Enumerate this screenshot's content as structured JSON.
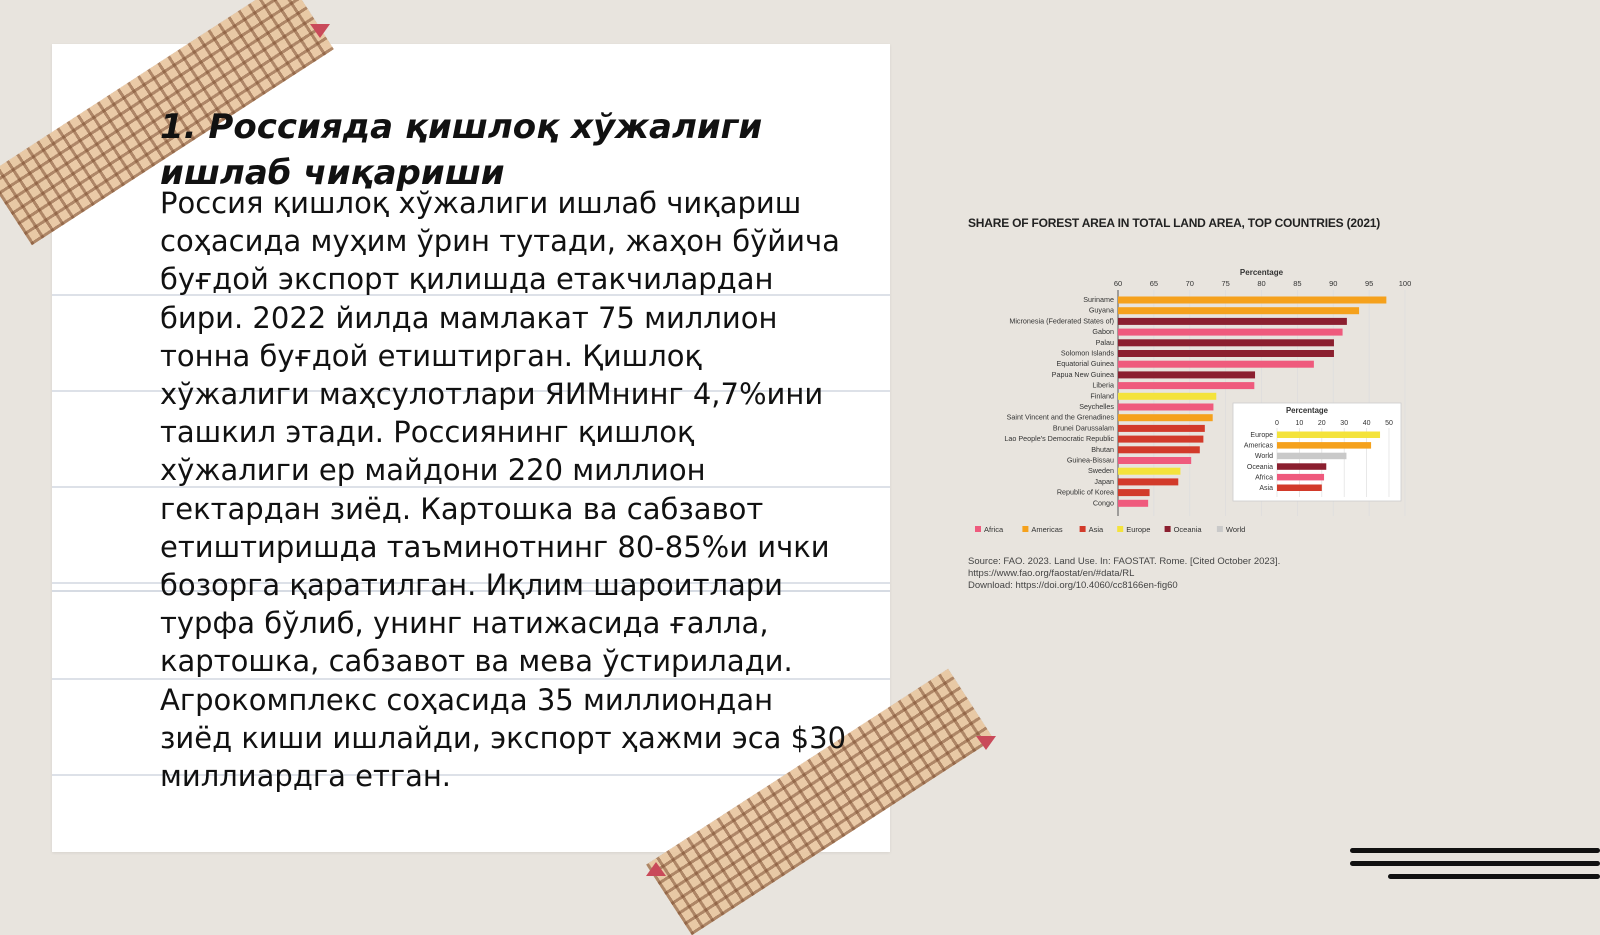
{
  "slide": {
    "title": "1. Россияда қишлоқ хўжалиги ишлаб чиқариши",
    "body": "Россия қишлоқ хўжалиги ишлаб чиқариш соҳасида муҳим ўрин тутади, жаҳон бўйича буғдой экспорт қилишда етакчилардан бири. 2022 йилда мамлакат 75 миллион тонна буғдой етиштирган. Қишлоқ хўжалиги маҳсулотлари ЯИМнинг 4,7%ини ташкил этади. Россиянинг қишлоқ хўжалиги ер майдони 220 миллион гектардан зиёд. Картошка ва сабзавот етиштиришда таъминотнинг 80-85%и ички бозорга қаратилган. Иқлим шароитлари турфа бўлиб, унинг натижасида ғалла, картошка, сабзавот ва мева ўстирилади. Агрокомплекс соҳасида 35 миллиондан зиёд киши ишлайди, экспорт ҳажми эса $30 миллиардга етган."
  },
  "chart_data": [
    {
      "type": "bar",
      "orientation": "horizontal",
      "title": "SHARE OF FOREST AREA IN TOTAL LAND AREA, TOP COUNTRIES (2021)",
      "xlabel": "Percentage",
      "xlim": [
        60,
        100
      ],
      "xticks": [
        60,
        65,
        70,
        75,
        80,
        85,
        90,
        95,
        100
      ],
      "categories": [
        "Suriname",
        "Guyana",
        "Micronesia (Federated States of)",
        "Gabon",
        "Palau",
        "Solomon Islands",
        "Equatorial Guinea",
        "Papua New Guinea",
        "Liberia",
        "Finland",
        "Seychelles",
        "Saint Vincent and the Grenadines",
        "Brunei Darussalam",
        "Lao People's Democratic Republic",
        "Bhutan",
        "Guinea-Bissau",
        "Sweden",
        "Japan",
        "Republic of Korea",
        "Congo"
      ],
      "values": [
        97.4,
        93.6,
        91.9,
        91.3,
        90.1,
        90.1,
        87.3,
        79.1,
        79.0,
        73.7,
        73.3,
        73.2,
        72.1,
        71.9,
        71.4,
        70.2,
        68.7,
        68.4,
        64.4,
        64.2
      ],
      "regions": [
        "Americas",
        "Americas",
        "Oceania",
        "Africa",
        "Oceania",
        "Oceania",
        "Africa",
        "Oceania",
        "Africa",
        "Europe",
        "Africa",
        "Americas",
        "Asia",
        "Asia",
        "Asia",
        "Africa",
        "Europe",
        "Asia",
        "Asia",
        "Africa"
      ],
      "legend": [
        "Africa",
        "Americas",
        "Asia",
        "Europe",
        "Oceania",
        "World"
      ],
      "legend_position": "bottom",
      "colors": {
        "Africa": "#ef5a7d",
        "Americas": "#f5a11c",
        "Asia": "#d23a2a",
        "Europe": "#f4e33c",
        "Oceania": "#8b1f2f",
        "World": "#c9c9c9"
      },
      "source": [
        "Source: FAO. 2023. Land Use. In: FAOSTAT. Rome. [Cited October 2023].",
        "https://www.fao.org/faostat/en/#data/RL",
        "Download: https://doi.org/10.4060/cc8166en-fig60"
      ]
    },
    {
      "type": "bar",
      "orientation": "horizontal",
      "title": "Percentage",
      "xlim": [
        0,
        50
      ],
      "xticks": [
        0,
        10,
        20,
        30,
        40,
        50
      ],
      "categories": [
        "Europe",
        "Americas",
        "World",
        "Oceania",
        "Africa",
        "Asia"
      ],
      "values": [
        46,
        42,
        31,
        22,
        21,
        20
      ]
    }
  ]
}
